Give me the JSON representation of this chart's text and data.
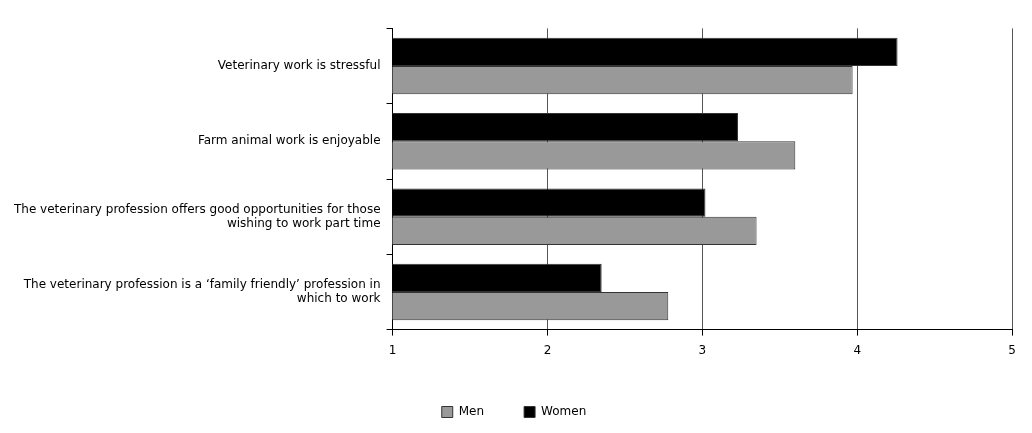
{
  "chart_data": {
    "type": "bar",
    "orientation": "horizontal",
    "categories": [
      "Veterinary work is stressful",
      "Farm animal work is enjoyable",
      "The veterinary profession offers good opportunities for those wishing to work part time",
      "The veterinary profession is a ‘family friendly’ profession in which to work"
    ],
    "series": [
      {
        "name": "Women",
        "color": "#000000",
        "values": [
          4.26,
          3.23,
          3.02,
          2.35
        ]
      },
      {
        "name": "Men",
        "color": "#999999",
        "values": [
          3.97,
          3.6,
          3.35,
          2.78
        ]
      }
    ],
    "xlim": [
      1,
      5
    ],
    "xticks": [
      1,
      2,
      3,
      4,
      5
    ],
    "grid": "x",
    "legend": "bottom"
  }
}
